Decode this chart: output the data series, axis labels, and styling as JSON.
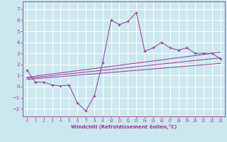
{
  "title": "",
  "xlabel": "Windchill (Refroidissement éolien,°C)",
  "ylabel": "",
  "background_color": "#cce8ef",
  "grid_color": "#ffffff",
  "line_color": "#993399",
  "xlim": [
    -0.5,
    23.5
  ],
  "ylim": [
    -2.7,
    7.7
  ],
  "yticks": [
    -2,
    -1,
    0,
    1,
    2,
    3,
    4,
    5,
    6,
    7
  ],
  "xticks": [
    0,
    1,
    2,
    3,
    4,
    5,
    6,
    7,
    8,
    9,
    10,
    11,
    12,
    13,
    14,
    15,
    16,
    17,
    18,
    19,
    20,
    21,
    22,
    23
  ],
  "zigzag_x": [
    0,
    1,
    2,
    3,
    4,
    5,
    6,
    7,
    8,
    9,
    10,
    11,
    12,
    13,
    14,
    15,
    16,
    17,
    18,
    19,
    20,
    21,
    22,
    23
  ],
  "zigzag_y": [
    1.5,
    0.4,
    0.4,
    0.15,
    0.05,
    0.15,
    -1.5,
    -2.2,
    -0.85,
    2.2,
    6.0,
    5.6,
    5.9,
    6.7,
    3.2,
    3.5,
    4.0,
    3.5,
    3.3,
    3.5,
    3.0,
    3.0,
    3.0,
    2.5
  ],
  "upper_line_x": [
    0,
    23
  ],
  "upper_line_y": [
    0.85,
    3.1
  ],
  "lower_line_x": [
    0,
    23
  ],
  "lower_line_y": [
    0.65,
    2.1
  ],
  "middle_line_x": [
    0,
    23
  ],
  "middle_line_y": [
    0.75,
    2.6
  ]
}
